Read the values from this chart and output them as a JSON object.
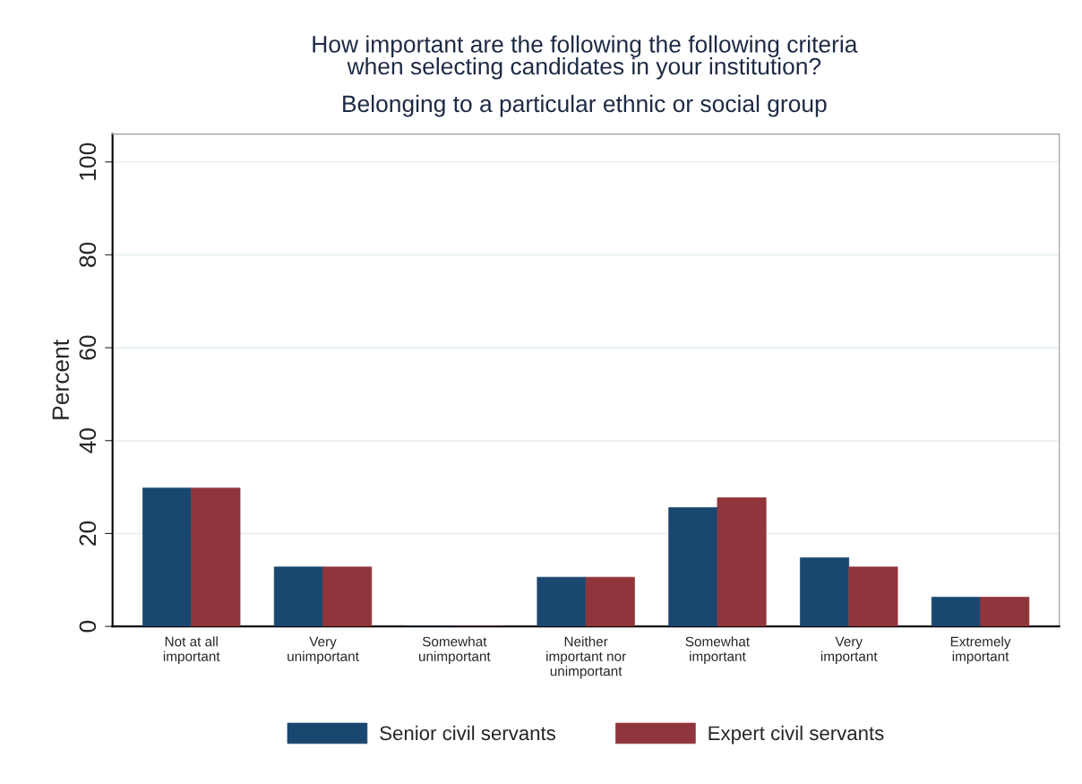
{
  "chart_data": {
    "type": "bar",
    "title": "How important are the following the following criteria\nwhen selecting candidates in your institution?",
    "subtitle": "Belonging to a particular ethnic or social group",
    "ylabel": "Percent",
    "categories": [
      "Not at all\nimportant",
      "Very\nunimportant",
      "Somewhat\nunimportant",
      "Neither\nimportant nor\nunimportant",
      "Somewhat\nimportant",
      "Very\nimportant",
      "Extremely\nimportant"
    ],
    "series": [
      {
        "name": "Senior civil servants",
        "color": "#1a476f",
        "values": [
          29.8,
          12.8,
          0,
          10.6,
          25.6,
          14.8,
          6.3
        ]
      },
      {
        "name": "Expert civil servants",
        "color": "#90353b",
        "values": [
          29.8,
          12.8,
          0,
          10.6,
          27.7,
          12.8,
          6.3
        ]
      }
    ],
    "ylim": [
      0,
      106
    ],
    "yticks": [
      0,
      20,
      40,
      60,
      80,
      100
    ],
    "grid": "y",
    "legend": "bottom"
  }
}
